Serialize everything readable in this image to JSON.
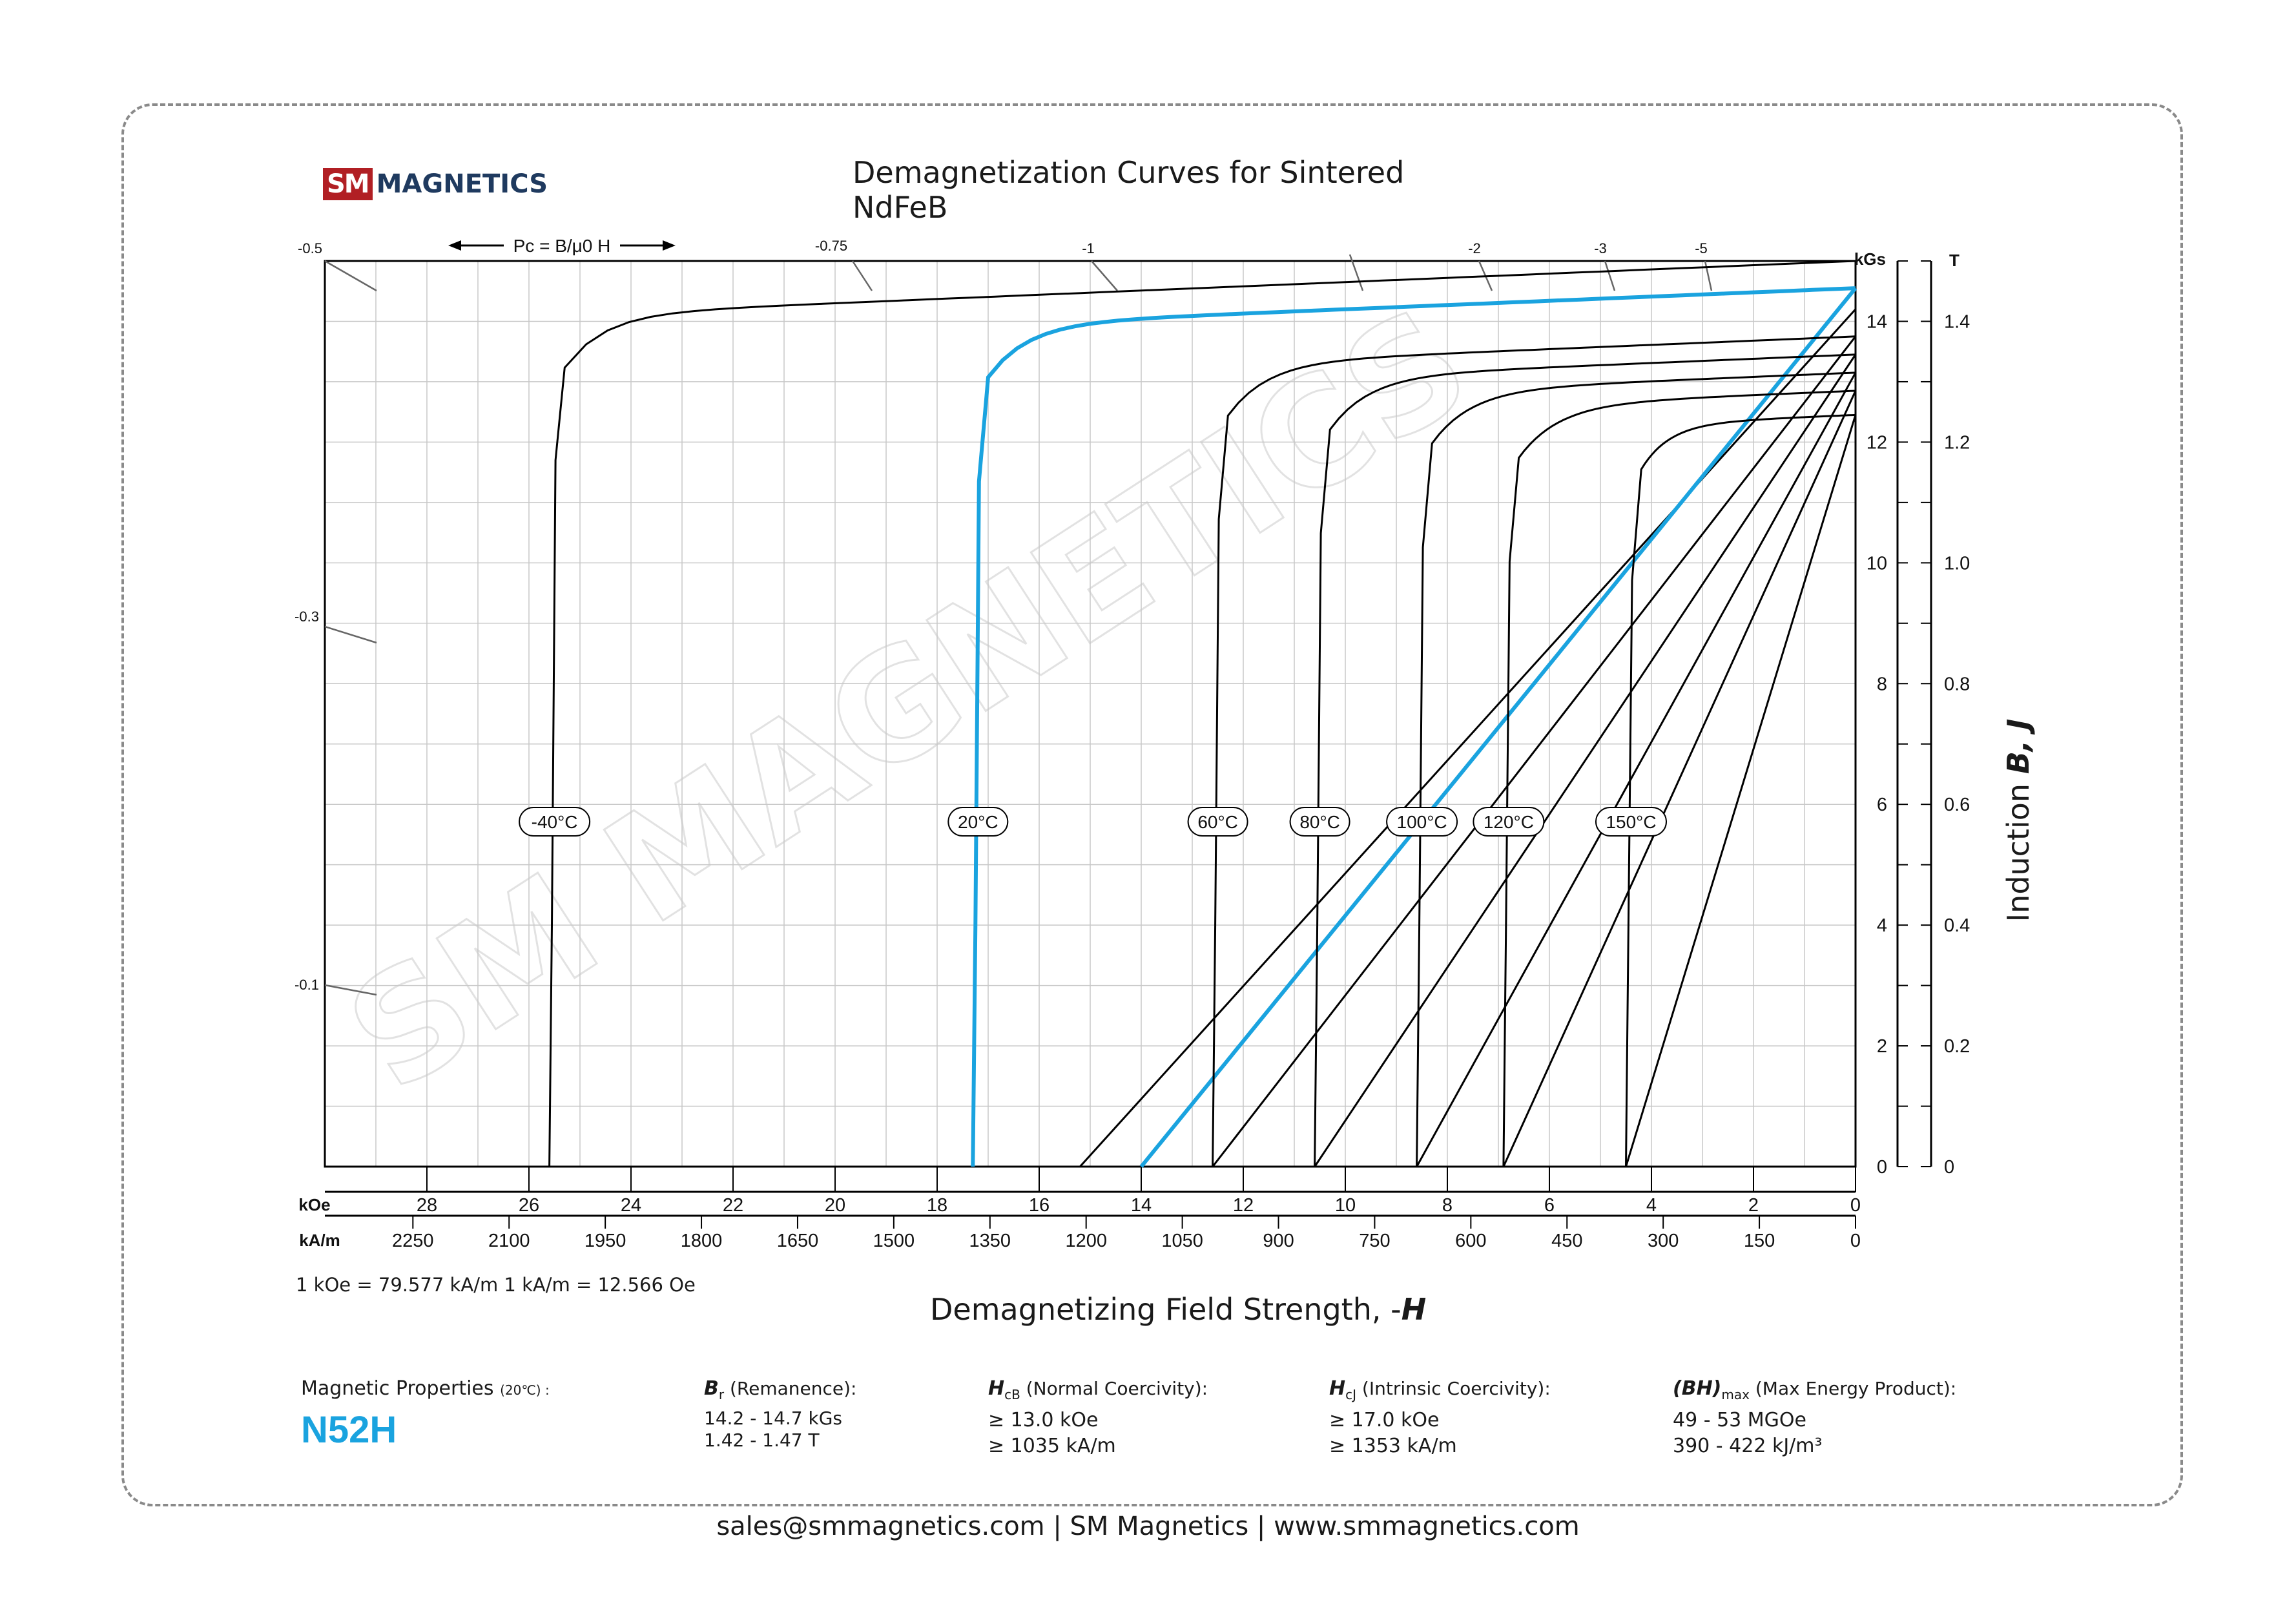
{
  "logo": {
    "mark": "SM",
    "text": "MAGNETICS"
  },
  "header": {
    "title": "Demagnetization Curves for Sintered NdFeB"
  },
  "chart_data": {
    "type": "line",
    "title": "Demagnetization Curves for Sintered NdFeB",
    "xlabel": "Demagnetizing Field Strength, -H",
    "ylabel": "Induction B, J",
    "x_axis_primary": {
      "unit": "kOe",
      "range": [
        30,
        0
      ],
      "ticks": [
        28,
        26,
        24,
        22,
        20,
        18,
        16,
        14,
        12,
        10,
        8,
        6,
        4,
        2,
        0
      ]
    },
    "x_axis_secondary": {
      "unit": "kA/m",
      "ticks": [
        2250,
        2100,
        1950,
        1800,
        1650,
        1500,
        1350,
        1200,
        1050,
        900,
        750,
        600,
        450,
        300,
        150,
        0
      ]
    },
    "y_axis_kgs": {
      "unit": "kGs",
      "range": [
        0,
        15
      ],
      "ticks": [
        0,
        2,
        4,
        6,
        8,
        10,
        12,
        14
      ]
    },
    "y_axis_t": {
      "unit": "T",
      "ticks": [
        "0",
        "0.2",
        "0.4",
        "0.6",
        "0.8",
        "1.0",
        "1.2",
        "1.4"
      ]
    },
    "pc_label": "Pc = B/μ0 H",
    "pc_lines": [
      {
        "label": "-0.5"
      },
      {
        "label": "-0.75"
      },
      {
        "label": "-1"
      },
      {
        "label": ""
      },
      {
        "label": "-2"
      },
      {
        "label": "-3"
      },
      {
        "label": "-5"
      },
      {
        "label": "-0.3"
      },
      {
        "label": "-0.1"
      }
    ],
    "grid": true,
    "series": [
      {
        "name": "-40°C",
        "kind": "J",
        "Br": 15.0,
        "Hcj": 25.6,
        "color": "#000000"
      },
      {
        "name": "20°C",
        "kind": "J",
        "Br": 14.55,
        "Hcj": 17.3,
        "color": "#1aa3df",
        "B_line": {
          "Br": 14.55,
          "Hc_end": 14.0
        }
      },
      {
        "name": "60°C",
        "kind": "J",
        "Br": 13.75,
        "Hcj": 12.6,
        "color": "#000000"
      },
      {
        "name": "80°C",
        "kind": "J",
        "Br": 13.45,
        "Hcj": 10.6,
        "color": "#000000"
      },
      {
        "name": "100°C",
        "kind": "J",
        "Br": 13.15,
        "Hcj": 8.6,
        "color": "#000000"
      },
      {
        "name": "120°C",
        "kind": "J",
        "Br": 12.85,
        "Hcj": 6.9,
        "color": "#000000"
      },
      {
        "name": "150°C",
        "kind": "J",
        "Br": 12.45,
        "Hcj": 4.5,
        "color": "#000000"
      }
    ],
    "b_lines": [
      {
        "Br": 14.2,
        "Hc_end": 15.2
      },
      {
        "Br": 13.75,
        "Hc_end": 12.6
      },
      {
        "Br": 13.45,
        "Hc_end": 10.6
      },
      {
        "Br": 13.15,
        "Hc_end": 8.6
      },
      {
        "Br": 12.85,
        "Hc_end": 6.9
      },
      {
        "Br": 12.45,
        "Hc_end": 4.5
      }
    ]
  },
  "conversion": {
    "text": "1 kOe = 79.577 kA/m   1 kA/m = 12.566 Oe"
  },
  "axis_titles": {
    "x_prefix": "Demagnetizing Field Strength, -",
    "x_var": "H",
    "y_prefix": "Induction  ",
    "y_var": "B,  J"
  },
  "properties": {
    "heading": "Magnetic Properties",
    "heading_temp": "(20℃) :",
    "grade": "N52H",
    "br": {
      "sym": "B",
      "sub": "r",
      "label": " (Remanence):",
      "line1": "14.2 - 14.7 kGs",
      "line2": "1.42 - 1.47 T"
    },
    "hcb": {
      "sym": "H",
      "sub": "cB",
      "label": " (Normal Coercivity):",
      "line1": "≥ 13.0 kOe",
      "line2": "≥ 1035 kA/m"
    },
    "hcj": {
      "sym": "H",
      "sub": "cJ",
      "label": " (Intrinsic Coercivity):",
      "line1": "≥ 17.0 kOe",
      "line2": "≥ 1353 kA/m"
    },
    "bhmax": {
      "sym": "(BH)",
      "sub": "max",
      "label": " (Max Energy Product):",
      "line1": "49 - 53 MGOe",
      "line2": "390 - 422 kJ/m³"
    }
  },
  "watermark": "SM MAGNETICS",
  "footer": {
    "contact": "sales@smmagnetics.com | SM Magnetics | www.smmagnetics.com"
  }
}
